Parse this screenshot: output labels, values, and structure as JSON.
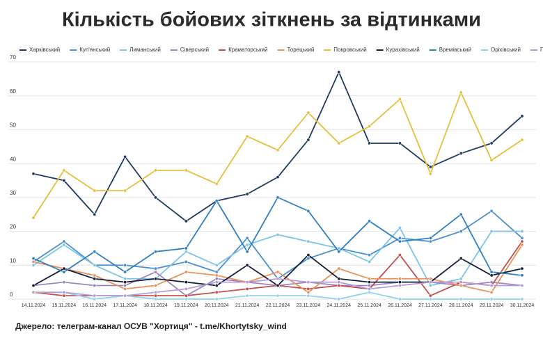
{
  "chart_data": {
    "type": "line",
    "title": "Кількість бойових зіткнень за відтинками",
    "source": "Джерело: телеграм-канал ОСУВ \"Хортиця\" - t.me/Khortytsky_wind",
    "x": [
      "14.11.2024",
      "15.11.2024",
      "16.11.2024",
      "17.11.2024",
      "18.11.2024",
      "19.11.2024",
      "20.11.2024",
      "21.11.2024",
      "22.11.2024",
      "23.11.2024",
      "24.11.2024",
      "25.11.2024",
      "26.11.2024",
      "27.11.2024",
      "28.11.2024",
      "29.11.2024",
      "30.11.2024"
    ],
    "ylim": [
      0,
      70
    ],
    "yticks": [
      0,
      10,
      20,
      30,
      40,
      50,
      60,
      70
    ],
    "grid": true,
    "series": [
      {
        "name": "Харківський",
        "color": "#1f3b63",
        "values": [
          37,
          35,
          25,
          42,
          30,
          23,
          29,
          31,
          36,
          47,
          67,
          46,
          46,
          39,
          43,
          46,
          54
        ]
      },
      {
        "name": "Куп'янський",
        "color": "#4a8fd0",
        "values": [
          11,
          17,
          10,
          10,
          9,
          11,
          8,
          18,
          6,
          12,
          15,
          13,
          18,
          17,
          20,
          26,
          18
        ]
      },
      {
        "name": "Лиманський",
        "color": "#7cc4e8",
        "values": [
          10,
          16,
          10,
          6,
          6,
          14,
          10,
          16,
          19,
          17,
          15,
          11,
          21,
          4,
          6,
          20,
          20
        ]
      },
      {
        "name": "Сіверський",
        "color": "#9a86c2",
        "values": [
          4,
          5,
          4,
          4,
          8,
          1,
          6,
          5,
          4,
          5,
          4,
          4,
          5,
          5,
          4,
          5,
          4
        ]
      },
      {
        "name": "Краматорський",
        "color": "#c0504d",
        "values": [
          2,
          1,
          1,
          1,
          1,
          1,
          2,
          3,
          4,
          3,
          4,
          3,
          13,
          1,
          5,
          4,
          17
        ]
      },
      {
        "name": "Торецький",
        "color": "#e8935a",
        "values": [
          11,
          9,
          7,
          3,
          4,
          8,
          7,
          5,
          8,
          2,
          9,
          6,
          6,
          6,
          4,
          2,
          16
        ]
      },
      {
        "name": "Покровський",
        "color": "#e6be3c",
        "values": [
          24,
          38,
          32,
          32,
          38,
          38,
          34,
          48,
          44,
          55,
          46,
          51,
          59,
          37,
          61,
          41,
          47
        ]
      },
      {
        "name": "Курахівський",
        "color": "#14203a",
        "values": [
          4,
          9,
          6,
          5,
          6,
          5,
          4,
          10,
          4,
          13,
          6,
          5,
          5,
          5,
          12,
          7,
          9
        ]
      },
      {
        "name": "Времівський",
        "color": "#2f7fc1",
        "values": [
          12,
          8,
          14,
          8,
          14,
          15,
          29,
          14,
          30,
          26,
          14,
          23,
          17,
          18,
          25,
          8,
          7
        ]
      },
      {
        "name": "Оріхівський",
        "color": "#8fd3ea",
        "values": [
          2,
          2,
          0,
          1,
          0,
          0,
          0,
          1,
          1,
          1,
          0,
          2,
          0,
          0,
          0,
          0,
          0
        ]
      },
      {
        "name": "Придніпровський",
        "color": "#b59bd8",
        "values": [
          2,
          2,
          1,
          1,
          2,
          3,
          5,
          5,
          6,
          5,
          5,
          3,
          4,
          5,
          5,
          4,
          4
        ]
      }
    ]
  }
}
